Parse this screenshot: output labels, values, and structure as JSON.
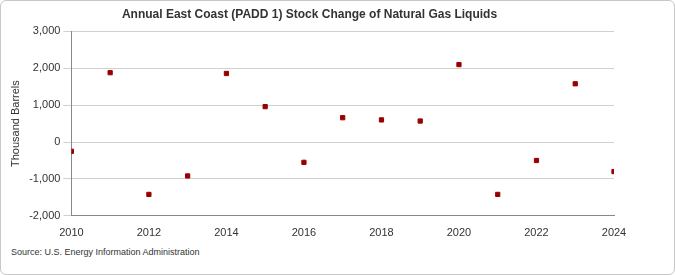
{
  "chart_data": {
    "type": "scatter",
    "title": "Annual East Coast (PADD 1) Stock Change of Natural Gas Liquids",
    "y_label": "Thousand Barrels",
    "annotations": [
      "Source: U.S. Energy Information Administration"
    ],
    "x": [
      2010,
      2011,
      2012,
      2013,
      2014,
      2015,
      2016,
      2017,
      2018,
      2019,
      2020,
      2021,
      2022,
      2023,
      2024
    ],
    "values": [
      -250,
      1880,
      -1420,
      -920,
      1860,
      960,
      -550,
      660,
      600,
      570,
      2100,
      -1420,
      -500,
      1580,
      -800
    ],
    "color": "#990000",
    "marker": "square",
    "xlim": [
      2010,
      2024
    ],
    "xticks": [
      2010,
      2012,
      2014,
      2016,
      2018,
      2020,
      2022,
      2024
    ],
    "ylim": [
      -2000,
      3000
    ],
    "yticks": [
      {
        "value": -2000,
        "label": "-2,000"
      },
      {
        "value": -1000,
        "label": "-1,000"
      },
      0,
      {
        "value": 1000,
        "label": "1,000"
      },
      {
        "value": 2000,
        "label": "2,000"
      },
      {
        "value": 3000,
        "label": "3,000"
      }
    ],
    "grid": true
  }
}
